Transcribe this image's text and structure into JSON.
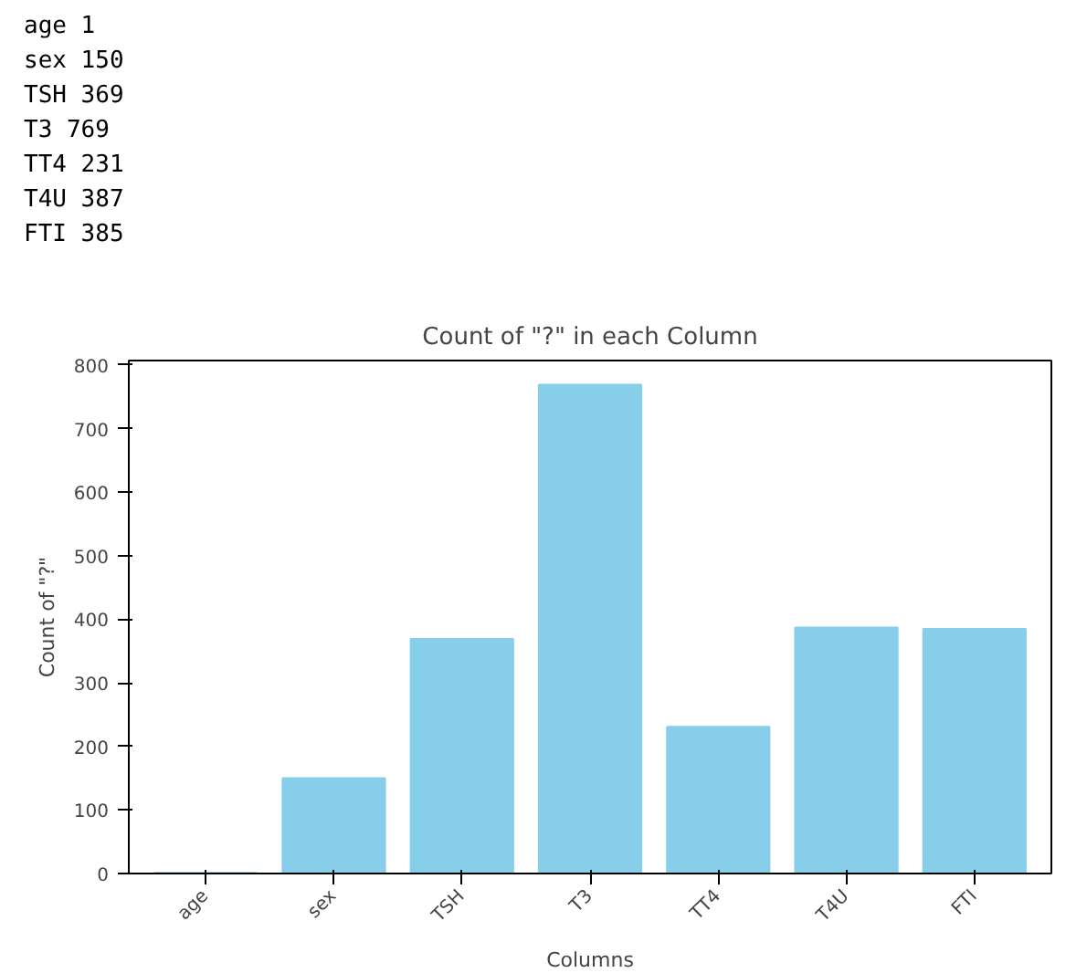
{
  "chart_data": {
    "type": "bar",
    "title": "Count of \"?\" in each Column",
    "xlabel": "Columns",
    "ylabel": "Count of \"?\"",
    "categories": [
      "age",
      "sex",
      "TSH",
      "T3",
      "TT4",
      "T4U",
      "FTI"
    ],
    "values": [
      1,
      150,
      369,
      769,
      231,
      387,
      385
    ],
    "color": "#87ceeb",
    "ylim": [
      0,
      807
    ],
    "yticks": [
      0,
      100,
      200,
      300,
      400,
      500,
      600,
      700,
      800
    ],
    "grid": false,
    "annotations": [
      "age 1",
      "sex 150",
      "TSH 369",
      "T3 769",
      "TT4 231",
      "T4U 387",
      "FTI 385"
    ]
  }
}
